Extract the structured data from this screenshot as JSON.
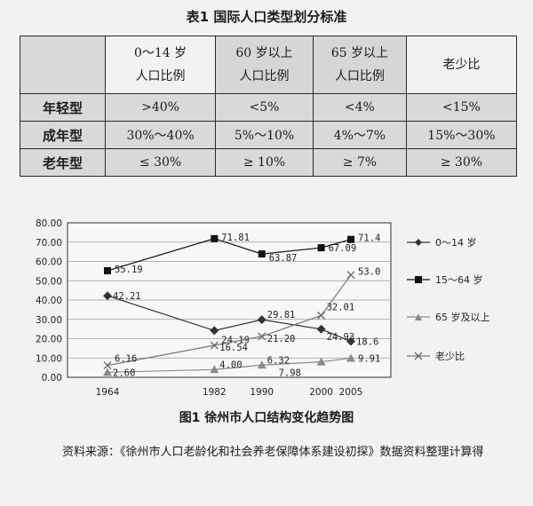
{
  "table_title": "表1 国际人口类型划分标准",
  "table": {
    "header": [
      {
        "line1": "0～14 岁",
        "line2": "人口比例"
      },
      {
        "line1": "60 岁以上",
        "line2": "人口比例"
      },
      {
        "line1": "65 岁以上",
        "line2": "人口比例"
      },
      {
        "line1": "老少比",
        "line2": ""
      }
    ],
    "rows": [
      {
        "label": "年轻型",
        "cells": [
          ">40%",
          "<5%",
          "<4%",
          "<15%"
        ]
      },
      {
        "label": "成年型",
        "cells": [
          "30%～40%",
          "5%～10%",
          "4%～7%",
          "15%～30%"
        ]
      },
      {
        "label": "老年型",
        "cells": [
          "≤ 30%",
          "≥ 10%",
          "≥ 7%",
          "≥ 30%"
        ]
      }
    ]
  },
  "chart_data": {
    "type": "line",
    "x": [
      "1964",
      "1982",
      "1990",
      "2000",
      "2005"
    ],
    "ylim": [
      0,
      80
    ],
    "yticks": [
      "0.00",
      "10.00",
      "20.00",
      "30.00",
      "40.00",
      "50.00",
      "60.00",
      "70.00",
      "80.00"
    ],
    "grid": true,
    "legend_position": "right",
    "series": [
      {
        "name": "0～14 岁",
        "marker": "diamond",
        "values": [
          42.21,
          24.19,
          29.81,
          24.93,
          18.6
        ],
        "labels": [
          "42.21",
          "24.19",
          "29.81",
          "24.93",
          "18.6"
        ]
      },
      {
        "name": "15～64 岁",
        "marker": "square",
        "values": [
          55.19,
          71.81,
          63.87,
          67.09,
          71.4
        ],
        "labels": [
          "55.19",
          "71.81",
          "63.87",
          "67.09",
          "71.4"
        ]
      },
      {
        "name": "65 岁及以上",
        "marker": "triangle",
        "values": [
          2.6,
          4.0,
          6.32,
          7.98,
          9.91
        ],
        "labels": [
          "2.60",
          "4.00",
          "6.32",
          "7.98",
          "9.91"
        ]
      },
      {
        "name": "老少比",
        "marker": "cross",
        "values": [
          6.16,
          16.54,
          21.2,
          32.01,
          53.0
        ],
        "labels": [
          "6.16",
          "16.54",
          "21.20",
          "32.01",
          "53.0"
        ]
      }
    ]
  },
  "figure_caption": "图1 徐州市人口结构变化趋势图",
  "source_note": "资料来源：《徐州市人口老龄化和社会养老保障体系建设初探》数据资料整理计算得"
}
